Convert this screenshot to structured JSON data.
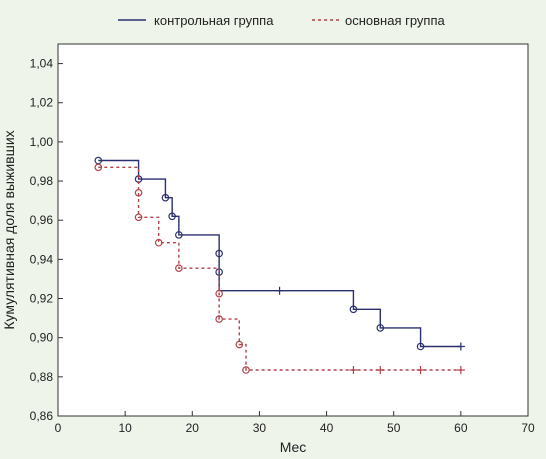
{
  "chart_data": {
    "type": "line",
    "xlabel": "Мес",
    "ylabel": "Кумулятивная доля выживших",
    "xlim": [
      0,
      70
    ],
    "ylim": [
      0.86,
      1.05
    ],
    "x_ticks": [
      0,
      10,
      20,
      30,
      40,
      50,
      60,
      70
    ],
    "x_tick_labels": [
      "0",
      "10",
      "20",
      "30",
      "40",
      "50",
      "60",
      "70"
    ],
    "y_ticks": [
      0.86,
      0.88,
      0.9,
      0.92,
      0.94,
      0.96,
      0.98,
      1.0,
      1.02,
      1.04
    ],
    "y_tick_labels": [
      "0,86",
      "0,88",
      "0,90",
      "0,92",
      "0,94",
      "0,96",
      "0,98",
      "1,00",
      "1,02",
      "1,04"
    ],
    "grid": false,
    "legend_position": "top-center",
    "series": [
      {
        "name": "контрольная группа",
        "color": "#2a2f6e",
        "style": "solid",
        "steps": [
          [
            6,
            0.9905
          ],
          [
            12,
            0.981
          ],
          [
            16,
            0.9715
          ],
          [
            17,
            0.962
          ],
          [
            18,
            0.9525
          ],
          [
            24,
            0.943
          ],
          [
            24,
            0.9335
          ],
          [
            24,
            0.924
          ],
          [
            44,
            0.9145
          ],
          [
            48,
            0.905
          ],
          [
            54,
            0.8955
          ],
          [
            60,
            0.8955
          ]
        ],
        "events": [
          [
            6,
            0.9905
          ],
          [
            12,
            0.981
          ],
          [
            16,
            0.9715
          ],
          [
            17,
            0.962
          ],
          [
            18,
            0.9525
          ],
          [
            24,
            0.943
          ],
          [
            24,
            0.9335
          ],
          [
            44,
            0.9145
          ],
          [
            48,
            0.905
          ],
          [
            54,
            0.8955
          ]
        ],
        "censored": [
          [
            33,
            0.924
          ],
          [
            60,
            0.8955
          ]
        ]
      },
      {
        "name": "основная группа",
        "color": "#b0424a",
        "style": "dashed",
        "steps": [
          [
            6,
            0.987
          ],
          [
            12,
            0.974
          ],
          [
            12,
            0.9615
          ],
          [
            15,
            0.9485
          ],
          [
            18,
            0.9355
          ],
          [
            24,
            0.9225
          ],
          [
            24,
            0.9095
          ],
          [
            27,
            0.8965
          ],
          [
            28,
            0.8835
          ],
          [
            60,
            0.8835
          ]
        ],
        "events": [
          [
            6,
            0.987
          ],
          [
            12,
            0.974
          ],
          [
            12,
            0.9615
          ],
          [
            15,
            0.9485
          ],
          [
            18,
            0.9355
          ],
          [
            24,
            0.9225
          ],
          [
            24,
            0.9095
          ],
          [
            27,
            0.8965
          ],
          [
            28,
            0.8835
          ]
        ],
        "censored": [
          [
            44,
            0.8835
          ],
          [
            48,
            0.8835
          ],
          [
            54,
            0.8835
          ],
          [
            60,
            0.8835
          ]
        ]
      }
    ]
  }
}
